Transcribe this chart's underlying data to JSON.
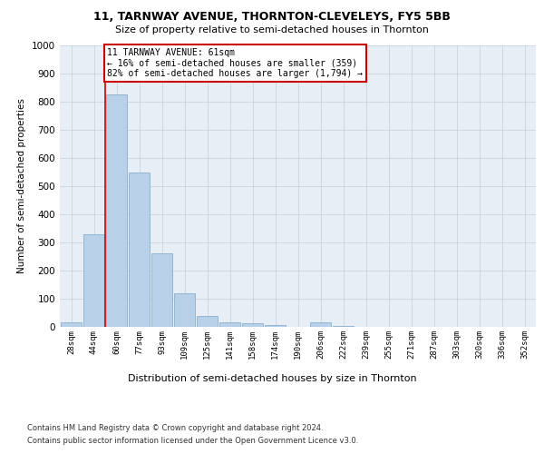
{
  "title1": "11, TARNWAY AVENUE, THORNTON-CLEVELEYS, FY5 5BB",
  "title2": "Size of property relative to semi-detached houses in Thornton",
  "xlabel": "Distribution of semi-detached houses by size in Thornton",
  "ylabel": "Number of semi-detached properties",
  "categories": [
    "28sqm",
    "44sqm",
    "60sqm",
    "77sqm",
    "93sqm",
    "109sqm",
    "125sqm",
    "141sqm",
    "158sqm",
    "174sqm",
    "190sqm",
    "206sqm",
    "222sqm",
    "239sqm",
    "255sqm",
    "271sqm",
    "287sqm",
    "303sqm",
    "320sqm",
    "336sqm",
    "352sqm"
  ],
  "values": [
    15,
    330,
    825,
    550,
    260,
    120,
    40,
    15,
    12,
    5,
    1,
    15,
    2,
    1,
    0,
    0,
    0,
    0,
    0,
    0,
    0
  ],
  "bar_color": "#b8d0e8",
  "bar_edge_color": "#8ab0cc",
  "highlight_color": "#cc0000",
  "annotation_text": "11 TARNWAY AVENUE: 61sqm\n← 16% of semi-detached houses are smaller (359)\n82% of semi-detached houses are larger (1,794) →",
  "annotation_box_color": "#ffffff",
  "annotation_box_edge_color": "#cc0000",
  "ylim": [
    0,
    1000
  ],
  "yticks": [
    0,
    100,
    200,
    300,
    400,
    500,
    600,
    700,
    800,
    900,
    1000
  ],
  "plot_bg_color": "#e8eef5",
  "footer1": "Contains HM Land Registry data © Crown copyright and database right 2024.",
  "footer2": "Contains public sector information licensed under the Open Government Licence v3.0."
}
